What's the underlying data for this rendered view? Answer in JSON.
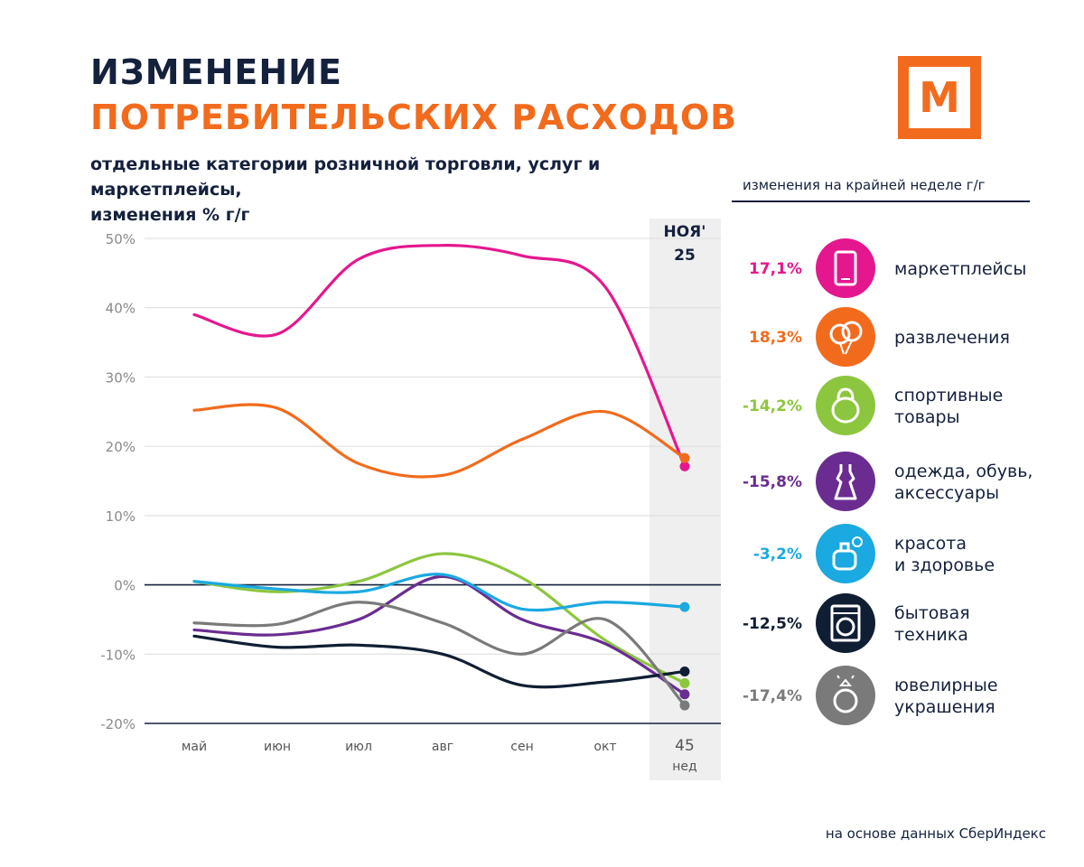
{
  "header": {
    "title_line1": "ИЗМЕНЕНИЕ",
    "title_line2": "ПОТРЕБИТЕЛЬСКИХ РАСХОДОВ",
    "subtitle": "отдельные категории розничной торговли, услуг  и маркетплейсы,\nизменения % г/г"
  },
  "logo": {
    "letter": "М",
    "color": "#f26b1d"
  },
  "legend": {
    "header": "изменения на крайней неделе г/г",
    "items": [
      {
        "value": "17,1%",
        "label": "маркетплейсы",
        "color": "#e5178e",
        "icon": "tablet-icon"
      },
      {
        "value": "18,3%",
        "label": "развлечения",
        "color": "#f26b1d",
        "icon": "balloons-icon"
      },
      {
        "value": "-14,2%",
        "label": "спортивные\nтовары",
        "color": "#8cc63f",
        "icon": "kettlebell-icon"
      },
      {
        "value": "-15,8%",
        "label": "одежда, обувь,\nаксессуары",
        "color": "#6a2c91",
        "icon": "dress-icon"
      },
      {
        "value": "-3,2%",
        "label": "красота\nи здоровье",
        "color": "#1ba9e1",
        "icon": "perfume-icon"
      },
      {
        "value": "-12,5%",
        "label": "бытовая\nтехника",
        "color": "#0f1e33",
        "icon": "washing-machine-icon"
      },
      {
        "value": "-17,4%",
        "label": "ювелирные\nукрашения",
        "color": "#7a7a7a",
        "icon": "ring-icon"
      }
    ]
  },
  "chart_data": {
    "type": "line",
    "categories": [
      "май",
      "июн",
      "июл",
      "авг",
      "сен",
      "окт",
      "45\nнед"
    ],
    "highlight": {
      "label": "НОЯ'\n25",
      "category_index": 6
    },
    "ylim": [
      -20,
      50
    ],
    "yticks": [
      50,
      40,
      30,
      20,
      10,
      0,
      -10,
      -20
    ],
    "ytick_labels": [
      "50%",
      "40%",
      "30%",
      "20%",
      "10%",
      "0%",
      "-10%",
      "-20%"
    ],
    "series": [
      {
        "name": "маркетплейсы",
        "color": "#e5178e",
        "values": [
          39,
          36.2,
          47,
          49,
          47.5,
          43,
          17.1
        ]
      },
      {
        "name": "развлечения",
        "color": "#f26b1d",
        "values": [
          25.2,
          25.5,
          17.5,
          15.8,
          21,
          25,
          18.3
        ]
      },
      {
        "name": "спортивные товары",
        "color": "#8cc63f",
        "values": [
          0.5,
          -1,
          0.5,
          4.5,
          1,
          -8,
          -14.2
        ]
      },
      {
        "name": "одежда, обувь, аксессуары",
        "color": "#6a2c91",
        "values": [
          -6.5,
          -7.2,
          -5,
          1.2,
          -5,
          -8.5,
          -15.8
        ]
      },
      {
        "name": "красота и здоровье",
        "color": "#1ba9e1",
        "values": [
          0.5,
          -0.6,
          -1,
          1.5,
          -3.5,
          -2.5,
          -3.2
        ]
      },
      {
        "name": "бытовая техника",
        "color": "#0f1e33",
        "values": [
          -7.4,
          -9,
          -8.7,
          -10,
          -14.5,
          -14,
          -12.5
        ]
      },
      {
        "name": "ювелирные украшения",
        "color": "#7a7a7a",
        "values": [
          -5.5,
          -5.7,
          -2.5,
          -5.5,
          -10,
          -5,
          -17.4
        ]
      }
    ]
  },
  "footer": {
    "source": "на основе данных СберИндекс"
  }
}
